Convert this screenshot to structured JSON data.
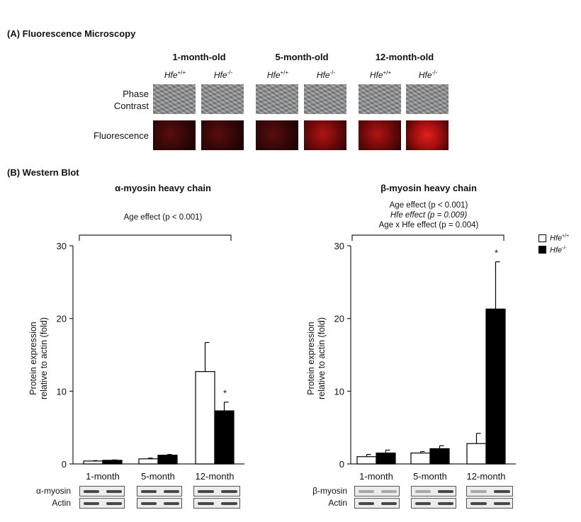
{
  "panel_a": {
    "label": "(A)  Fluorescence Microscopy",
    "ages": [
      "1-month-old",
      "5-month-old",
      "12-month-old"
    ],
    "genotypes": [
      {
        "base": "Hfe",
        "sup": "+/+"
      },
      {
        "base": "Hfe",
        "sup": "-/-"
      }
    ],
    "row_labels": {
      "phase_line1": "Phase",
      "phase_line2": "Contrast",
      "fluorescence": "Fluorescence"
    }
  },
  "panel_b": {
    "label": "(B)  Western Blot"
  },
  "legend": [
    {
      "base": "Hfe",
      "sup": "+/+",
      "color": "#ffffff"
    },
    {
      "base": "Hfe",
      "sup": "-/-",
      "color": "#000000"
    }
  ],
  "chart_data": [
    {
      "type": "bar",
      "title": "α-myosin heavy chain",
      "annotations": [
        "Age effect (p < 0.001)"
      ],
      "ylabel_line1": "Protein expression",
      "ylabel_line2": "relative to actin (fold)",
      "xlabel": "",
      "ylim": [
        0,
        30
      ],
      "yticks": [
        0,
        10,
        20,
        30
      ],
      "categories": [
        "1-month",
        "5-month",
        "12-month"
      ],
      "series": [
        {
          "values": [
            0.4,
            0.7,
            12.7
          ],
          "errors": [
            0.05,
            0.1,
            4.0
          ],
          "color": "#ffffff"
        },
        {
          "values": [
            0.5,
            1.2,
            7.3
          ],
          "errors": [
            0.05,
            0.1,
            1.2
          ],
          "color": "#000000"
        }
      ],
      "significance": [
        {
          "category": "12-month",
          "series": 1,
          "mark": "*"
        }
      ],
      "blots": [
        {
          "label": "α-myosin"
        },
        {
          "label": "Actin"
        }
      ]
    },
    {
      "type": "bar",
      "title": "β-myosin heavy chain",
      "annotations": [
        "Age effect (p < 0.001)",
        "Hfe effect (p = 0.009)",
        "Age x Hfe effect (p = 0.004)"
      ],
      "ylabel_line1": "Protein expression",
      "ylabel_line2": "relative to actin (fold)",
      "xlabel": "",
      "ylim": [
        0,
        30
      ],
      "yticks": [
        0,
        10,
        20,
        30
      ],
      "categories": [
        "1-month",
        "5-month",
        "12-month"
      ],
      "series": [
        {
          "values": [
            1.0,
            1.5,
            2.8
          ],
          "errors": [
            0.3,
            0.2,
            1.4
          ],
          "color": "#ffffff"
        },
        {
          "values": [
            1.5,
            2.1,
            21.3
          ],
          "errors": [
            0.4,
            0.4,
            6.5
          ],
          "color": "#000000"
        }
      ],
      "significance": [
        {
          "category": "12-month",
          "series": 1,
          "mark": "*"
        }
      ],
      "blots": [
        {
          "label": "β-myosin"
        },
        {
          "label": "Actin"
        }
      ]
    }
  ]
}
